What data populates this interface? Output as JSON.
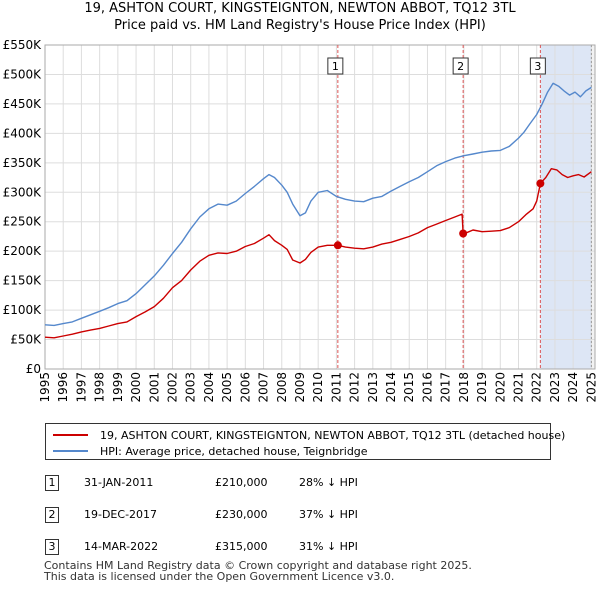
{
  "title_line1": "19, ASHTON COURT, KINGSTEIGNTON, NEWTON ABBOT, TQ12 3TL",
  "title_line2": "Price paid vs. HM Land Registry's House Price Index (HPI)",
  "colors": {
    "property": "#cc0000",
    "hpi": "#5588cc",
    "shade": "#dde6f5",
    "grid": "#dddddd",
    "vline": "#dd5555"
  },
  "legend": {
    "property_label": "19, ASHTON COURT, KINGSTEIGNTON, NEWTON ABBOT, TQ12 3TL (detached house)",
    "hpi_label": "HPI: Average price, detached house, Teignbridge"
  },
  "transactions": [
    {
      "num": "1",
      "date": "31-JAN-2011",
      "price": "£210,000",
      "hpi": "28% ↓ HPI"
    },
    {
      "num": "2",
      "date": "19-DEC-2017",
      "price": "£230,000",
      "hpi": "37% ↓ HPI"
    },
    {
      "num": "3",
      "date": "14-MAR-2022",
      "price": "£315,000",
      "hpi": "31% ↓ HPI"
    }
  ],
  "footer_line1": "Contains HM Land Registry data © Crown copyright and database right 2025.",
  "footer_line2": "This data is licensed under the Open Government Licence v3.0.",
  "chart_data": {
    "type": "line",
    "title": "19, ASHTON COURT, KINGSTEIGNTON, NEWTON ABBOT, TQ12 3TL — Price paid vs. HM Land Registry's House Price Index (HPI)",
    "xlim": [
      1995,
      2025.2
    ],
    "ylim": [
      0,
      550000
    ],
    "x_ticks": [
      1995,
      1996,
      1997,
      1998,
      1999,
      2000,
      2001,
      2002,
      2003,
      2004,
      2005,
      2006,
      2007,
      2008,
      2009,
      2010,
      2011,
      2012,
      2013,
      2014,
      2015,
      2016,
      2017,
      2018,
      2019,
      2020,
      2021,
      2022,
      2023,
      2024,
      2025
    ],
    "y_ticks": [
      0,
      50000,
      100000,
      150000,
      200000,
      250000,
      300000,
      350000,
      400000,
      450000,
      500000,
      550000
    ],
    "y_tick_labels": [
      "£0",
      "£50K",
      "£100K",
      "£150K",
      "£200K",
      "£250K",
      "£300K",
      "£350K",
      "£400K",
      "£450K",
      "£500K",
      "£550K"
    ],
    "grid": true,
    "legend_position": "below",
    "sales": [
      {
        "label": "1",
        "x": 2011.08,
        "y": 210000
      },
      {
        "label": "2",
        "x": 2017.96,
        "y": 230000
      },
      {
        "label": "3",
        "x": 2022.2,
        "y": 315000
      }
    ],
    "series": [
      {
        "name": "HPI: Average price, detached house, Teignbridge",
        "x": [
          1995,
          1995.5,
          1996,
          1996.5,
          1997,
          1997.5,
          1998,
          1998.5,
          1999,
          1999.5,
          2000,
          2000.5,
          2001,
          2001.5,
          2002,
          2002.5,
          2003,
          2003.5,
          2004,
          2004.5,
          2005,
          2005.5,
          2006,
          2006.5,
          2007,
          2007.3,
          2007.6,
          2008,
          2008.3,
          2008.6,
          2009,
          2009.3,
          2009.6,
          2010,
          2010.5,
          2011,
          2011.5,
          2012,
          2012.5,
          2013,
          2013.5,
          2014,
          2014.5,
          2015,
          2015.5,
          2016,
          2016.5,
          2017,
          2017.5,
          2018,
          2018.5,
          2019,
          2019.5,
          2020,
          2020.5,
          2021,
          2021.3,
          2021.6,
          2022,
          2022.3,
          2022.6,
          2022.9,
          2023.2,
          2023.5,
          2023.8,
          2024.1,
          2024.4,
          2024.7,
          2025
        ],
        "values": [
          75000,
          74000,
          77000,
          80000,
          86000,
          92000,
          98000,
          104000,
          111000,
          116000,
          128000,
          143000,
          158000,
          176000,
          196000,
          215000,
          238000,
          258000,
          272000,
          280000,
          278000,
          285000,
          298000,
          310000,
          323000,
          330000,
          325000,
          312000,
          300000,
          280000,
          260000,
          265000,
          285000,
          300000,
          303000,
          293000,
          288000,
          285000,
          284000,
          290000,
          293000,
          302000,
          310000,
          318000,
          325000,
          335000,
          345000,
          352000,
          358000,
          362000,
          365000,
          368000,
          370000,
          371000,
          378000,
          392000,
          402000,
          415000,
          432000,
          450000,
          470000,
          485000,
          480000,
          472000,
          465000,
          470000,
          462000,
          472000,
          478000
        ]
      },
      {
        "name": "19, ASHTON COURT, KINGSTEIGNTON, NEWTON ABBOT, TQ12 3TL (detached house)",
        "x": [
          1995,
          1995.5,
          1996,
          1996.5,
          1997,
          1997.5,
          1998,
          1998.5,
          1999,
          1999.5,
          2000,
          2000.5,
          2001,
          2001.5,
          2002,
          2002.5,
          2003,
          2003.5,
          2004,
          2004.5,
          2005,
          2005.5,
          2006,
          2006.5,
          2007,
          2007.3,
          2007.6,
          2008,
          2008.3,
          2008.6,
          2009,
          2009.3,
          2009.6,
          2010,
          2010.5,
          2011.08,
          2011.5,
          2012,
          2012.5,
          2013,
          2013.5,
          2014,
          2014.5,
          2015,
          2015.5,
          2016,
          2016.5,
          2017,
          2017.5,
          2017.9,
          2017.96,
          2018.2,
          2018.5,
          2019,
          2019.5,
          2020,
          2020.5,
          2021,
          2021.4,
          2021.8,
          2022,
          2022.2,
          2022.5,
          2022.8,
          2023.1,
          2023.4,
          2023.7,
          2024,
          2024.3,
          2024.6,
          2025
        ],
        "values": [
          54000,
          53000,
          56000,
          59000,
          63000,
          66000,
          69000,
          73000,
          77000,
          80000,
          89000,
          97000,
          106000,
          120000,
          138000,
          150000,
          168000,
          183000,
          193000,
          197000,
          196000,
          200000,
          208000,
          213000,
          222000,
          228000,
          218000,
          210000,
          203000,
          185000,
          180000,
          186000,
          198000,
          207000,
          210000,
          210000,
          207000,
          205000,
          204000,
          207000,
          212000,
          215000,
          220000,
          225000,
          231000,
          240000,
          246000,
          252000,
          258000,
          263000,
          230000,
          232000,
          236000,
          233000,
          234000,
          235000,
          240000,
          250000,
          262000,
          272000,
          285000,
          315000,
          325000,
          340000,
          338000,
          330000,
          325000,
          328000,
          330000,
          326000,
          335000
        ]
      }
    ]
  }
}
